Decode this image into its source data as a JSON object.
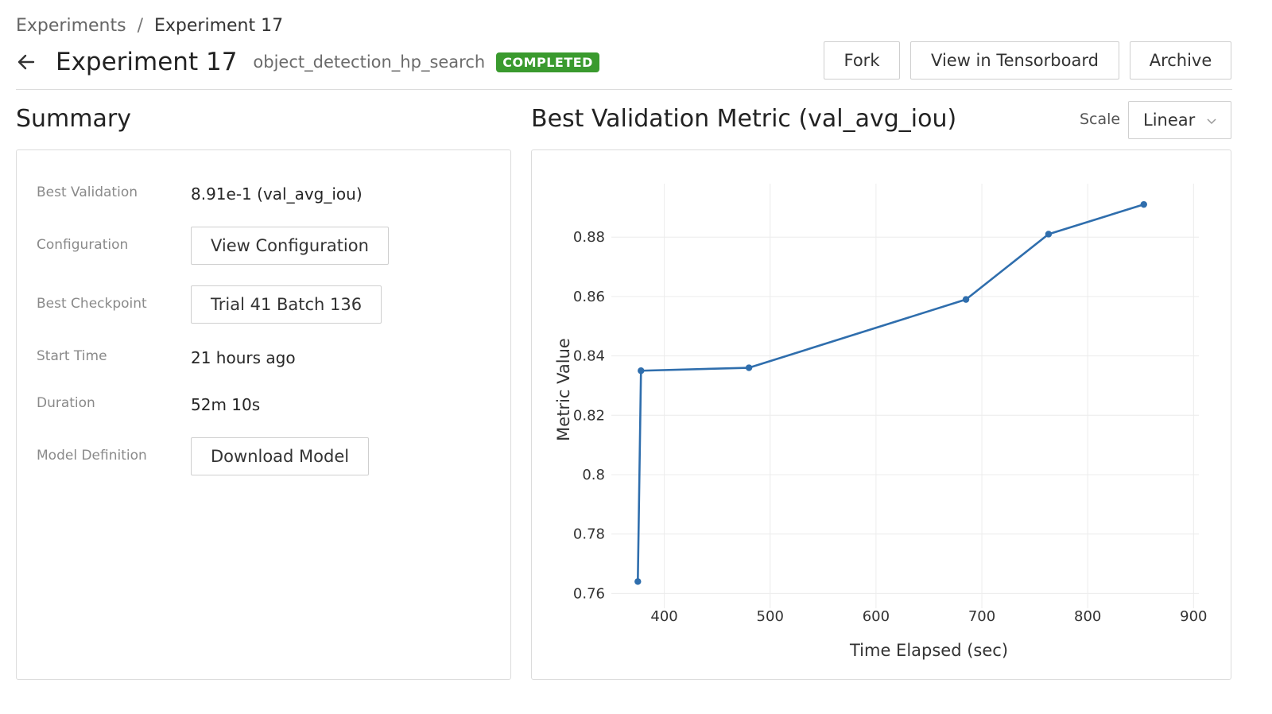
{
  "breadcrumb": {
    "parent": "Experiments",
    "separator": "/",
    "current": "Experiment 17"
  },
  "header": {
    "title": "Experiment 17",
    "subtitle": "object_detection_hp_search",
    "status": "COMPLETED",
    "status_color": "#3a9a2e"
  },
  "actions": {
    "fork": "Fork",
    "tensorboard": "View in Tensorboard",
    "archive": "Archive"
  },
  "summary": {
    "title": "Summary",
    "rows": [
      {
        "label": "Best Validation",
        "value": "8.91e-1 (val_avg_iou)"
      },
      {
        "label": "Configuration",
        "button": "View Configuration"
      },
      {
        "label": "Best Checkpoint",
        "button": "Trial 41 Batch 136"
      },
      {
        "label": "Start Time",
        "value": "21 hours ago"
      },
      {
        "label": "Duration",
        "value": "52m 10s"
      },
      {
        "label": "Model Definition",
        "button": "Download Model"
      }
    ]
  },
  "chart_panel": {
    "title": "Best Validation Metric (val_avg_iou)",
    "scale_label": "Scale",
    "scale_value": "Linear"
  },
  "chart_data": {
    "type": "line",
    "xlabel": "Time Elapsed (sec)",
    "ylabel": "Metric Value",
    "xlim": [
      350,
      905
    ],
    "ylim": [
      0.755,
      0.898
    ],
    "x_ticks": [
      400,
      500,
      600,
      700,
      800,
      900
    ],
    "y_ticks": [
      0.76,
      0.78,
      0.8,
      0.82,
      0.84,
      0.86,
      0.88
    ],
    "y_tick_labels": [
      "0.76",
      "0.78",
      "0.8",
      "0.82",
      "0.84",
      "0.86",
      "0.88"
    ],
    "grid": true,
    "series_color": "#2f6ead",
    "points": [
      {
        "x": 375,
        "y": 0.764
      },
      {
        "x": 378,
        "y": 0.835
      },
      {
        "x": 480,
        "y": 0.836
      },
      {
        "x": 685,
        "y": 0.859
      },
      {
        "x": 763,
        "y": 0.881
      },
      {
        "x": 853,
        "y": 0.891
      }
    ]
  }
}
